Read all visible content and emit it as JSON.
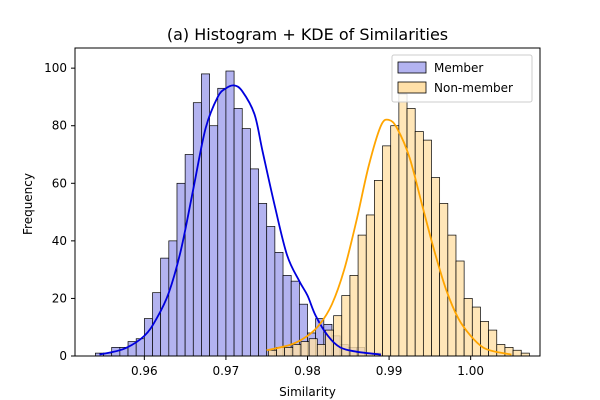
{
  "chart_data": {
    "type": "histogram",
    "title": "(a) Histogram + KDE of Similarities",
    "xlabel": "Similarity",
    "ylabel": "Frequency",
    "xlim": [
      0.9515,
      1.0085
    ],
    "ylim": [
      0,
      107
    ],
    "xticks": [
      0.96,
      0.97,
      0.98,
      0.99,
      1.0
    ],
    "xtick_labels": [
      "0.96",
      "0.97",
      "0.98",
      "0.99",
      "1.00"
    ],
    "yticks": [
      0,
      20,
      40,
      60,
      80,
      100
    ],
    "ytick_labels": [
      "0",
      "20",
      "40",
      "60",
      "80",
      "100"
    ],
    "grid": false,
    "legend_position": "top-right",
    "series": [
      {
        "name": "Member",
        "fill_color": "#b3b3f0",
        "kde_color": "#0000dd",
        "bin_start": 0.954,
        "bin_width": 0.001,
        "counts": [
          1,
          1,
          3,
          3,
          5,
          6,
          13,
          22,
          34,
          40,
          60,
          70,
          88,
          98,
          80,
          93,
          99,
          86,
          79,
          65,
          53,
          45,
          36,
          28,
          26,
          18,
          8,
          13,
          11,
          7,
          4,
          3,
          3,
          1,
          1
        ],
        "kde": [
          [
            0.9545,
            0.5
          ],
          [
            0.9575,
            2.5
          ],
          [
            0.96,
            7
          ],
          [
            0.9615,
            13
          ],
          [
            0.963,
            22
          ],
          [
            0.9645,
            37
          ],
          [
            0.966,
            58
          ],
          [
            0.9675,
            79
          ],
          [
            0.969,
            90
          ],
          [
            0.97,
            93
          ],
          [
            0.971,
            94
          ],
          [
            0.972,
            92
          ],
          [
            0.9735,
            84
          ],
          [
            0.9745,
            71
          ],
          [
            0.976,
            52
          ],
          [
            0.9775,
            35
          ],
          [
            0.979,
            26
          ],
          [
            0.98,
            21
          ],
          [
            0.981,
            14
          ],
          [
            0.9825,
            7
          ],
          [
            0.984,
            3
          ],
          [
            0.986,
            1.5
          ],
          [
            0.989,
            0.5
          ]
        ]
      },
      {
        "name": "Non-member",
        "fill_color": "#ffe0a8",
        "kde_color": "#ffa500",
        "bin_start": 0.9752,
        "bin_width": 0.001,
        "counts": [
          2,
          3,
          3,
          4,
          5,
          6,
          4,
          9,
          14,
          21,
          28,
          42,
          49,
          61,
          73,
          80,
          91,
          86,
          78,
          75,
          62,
          53,
          42,
          33,
          20,
          17,
          12,
          9,
          4,
          3,
          2,
          1
        ],
        "kde": [
          [
            0.975,
            2
          ],
          [
            0.978,
            4
          ],
          [
            0.98,
            7
          ],
          [
            0.9815,
            11
          ],
          [
            0.983,
            18
          ],
          [
            0.9845,
            30
          ],
          [
            0.986,
            47
          ],
          [
            0.9875,
            66
          ],
          [
            0.989,
            80
          ],
          [
            0.99,
            82
          ],
          [
            0.991,
            79
          ],
          [
            0.9925,
            69
          ],
          [
            0.994,
            53
          ],
          [
            0.9955,
            37
          ],
          [
            0.997,
            23
          ],
          [
            0.9985,
            13
          ],
          [
            1.0,
            7
          ],
          [
            1.0015,
            3
          ],
          [
            1.003,
            1.5
          ],
          [
            1.005,
            0.5
          ]
        ]
      }
    ]
  }
}
